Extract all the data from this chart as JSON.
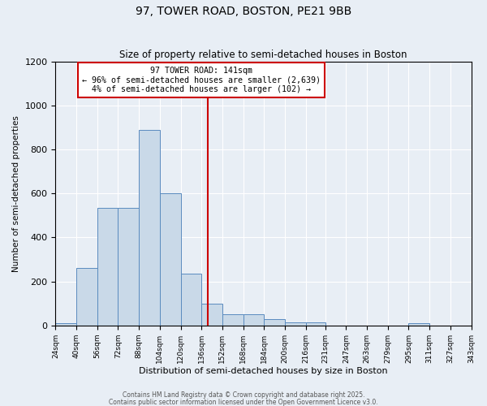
{
  "title": "97, TOWER ROAD, BOSTON, PE21 9BB",
  "subtitle": "Size of property relative to semi-detached houses in Boston",
  "xlabel": "Distribution of semi-detached houses by size in Boston",
  "ylabel": "Number of semi-detached properties",
  "bin_edges": [
    24,
    40,
    56,
    72,
    88,
    104,
    120,
    136,
    152,
    168,
    184,
    200,
    216,
    231,
    247,
    263,
    279,
    295,
    311,
    327,
    343
  ],
  "bar_heights": [
    10,
    260,
    535,
    535,
    890,
    600,
    235,
    100,
    50,
    50,
    30,
    15,
    15,
    0,
    0,
    0,
    0,
    10,
    0,
    0
  ],
  "bar_color": "#c9d9e8",
  "bar_edge_color": "#5a8bbf",
  "vline_x": 141,
  "vline_color": "#cc0000",
  "annotation_title": "97 TOWER ROAD: 141sqm",
  "annotation_line1": "← 96% of semi-detached houses are smaller (2,639)",
  "annotation_line2": "4% of semi-detached houses are larger (102) →",
  "annotation_box_color": "#cc0000",
  "ylim": [
    0,
    1200
  ],
  "yticks": [
    0,
    200,
    400,
    600,
    800,
    1000,
    1200
  ],
  "background_color": "#e8eef5",
  "footer1": "Contains HM Land Registry data © Crown copyright and database right 2025.",
  "footer2": "Contains public sector information licensed under the Open Government Licence v3.0.",
  "footer_color": "#555555"
}
